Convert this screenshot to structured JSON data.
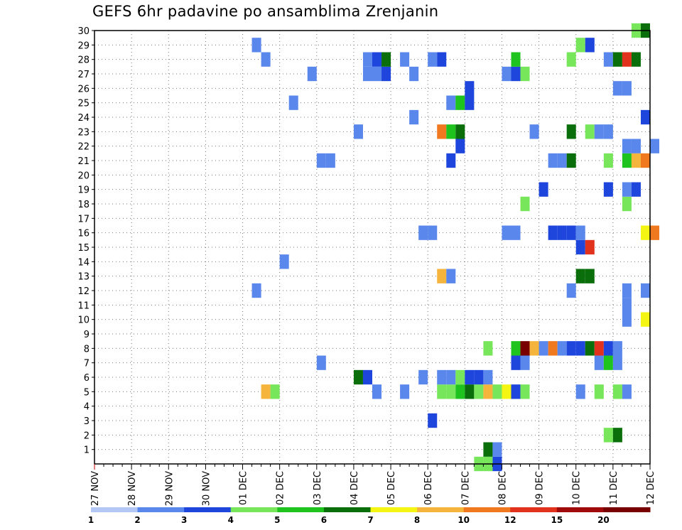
{
  "chart_data": {
    "type": "heatmap",
    "title": "GEFS 6hr padavine po ansamblima Zrenjanin",
    "x_tick_labels": [
      "27 NOV",
      "28 NOV",
      "29 NOV",
      "30 NOV",
      "01 DEC",
      "02 DEC",
      "03 DEC",
      "04 DEC",
      "05 DEC",
      "06 DEC",
      "07 DEC",
      "08 DEC",
      "09 DEC",
      "10 DEC",
      "11 DEC",
      "12 DEC"
    ],
    "y_tick_labels": [
      "1",
      "2",
      "3",
      "4",
      "5",
      "6",
      "7",
      "8",
      "9",
      "10",
      "11",
      "12",
      "13",
      "14",
      "15",
      "16",
      "17",
      "18",
      "19",
      "20",
      "21",
      "22",
      "23",
      "24",
      "25",
      "26",
      "27",
      "28",
      "29",
      "30"
    ],
    "x_unit": "6-hour step (4 steps per day)",
    "x_range": [
      0,
      60
    ],
    "y_range": [
      0,
      30
    ],
    "grid": true,
    "legend": {
      "placement": "bottom",
      "labels": [
        "1",
        "2",
        "3",
        "4",
        "5",
        "6",
        "7",
        "8",
        "10",
        "12",
        "15",
        "20"
      ],
      "colors": [
        "#b4c8f5",
        "#5a87eb",
        "#1e46dc",
        "#78e65a",
        "#1ec31e",
        "#0a6e0a",
        "#f5f514",
        "#f5b43c",
        "#f0781e",
        "#e1321e",
        "#a00a0a",
        "#780000"
      ]
    },
    "cells": [
      [
        41.5,
        0,
        3
      ],
      [
        42.5,
        0,
        3
      ],
      [
        43.5,
        0,
        2
      ],
      [
        42.5,
        1,
        5
      ],
      [
        43.5,
        1,
        1
      ],
      [
        55.5,
        2,
        3
      ],
      [
        56.5,
        2,
        5
      ],
      [
        36.5,
        3,
        2
      ],
      [
        18.5,
        5,
        7
      ],
      [
        19.5,
        5,
        3
      ],
      [
        30.5,
        5,
        1
      ],
      [
        33.5,
        5,
        1
      ],
      [
        37.5,
        5,
        3
      ],
      [
        38.5,
        5,
        3
      ],
      [
        39.5,
        5,
        4
      ],
      [
        40.5,
        5,
        5
      ],
      [
        41.5,
        5,
        3
      ],
      [
        42.5,
        5,
        7
      ],
      [
        43.5,
        5,
        3
      ],
      [
        44.5,
        5,
        6
      ],
      [
        45.5,
        5,
        2
      ],
      [
        46.5,
        5,
        3
      ],
      [
        52.5,
        5,
        1
      ],
      [
        54.5,
        5,
        3
      ],
      [
        56.5,
        5,
        3
      ],
      [
        57.5,
        5,
        1
      ],
      [
        28.5,
        6,
        5
      ],
      [
        29.5,
        6,
        2
      ],
      [
        35.5,
        6,
        1
      ],
      [
        37.5,
        6,
        1
      ],
      [
        38.5,
        6,
        1
      ],
      [
        39.5,
        6,
        3
      ],
      [
        40.5,
        6,
        2
      ],
      [
        41.5,
        6,
        2
      ],
      [
        42.5,
        6,
        1
      ],
      [
        24.5,
        7,
        1
      ],
      [
        45.5,
        7,
        2
      ],
      [
        46.5,
        7,
        1
      ],
      [
        54.5,
        7,
        1
      ],
      [
        55.5,
        7,
        4
      ],
      [
        56.5,
        7,
        1
      ],
      [
        42.5,
        8,
        3
      ],
      [
        45.5,
        8,
        4
      ],
      [
        46.5,
        8,
        11
      ],
      [
        47.5,
        8,
        7
      ],
      [
        48.5,
        8,
        1
      ],
      [
        49.5,
        8,
        8
      ],
      [
        50.5,
        8,
        1
      ],
      [
        51.5,
        8,
        2
      ],
      [
        52.5,
        8,
        2
      ],
      [
        53.5,
        8,
        5
      ],
      [
        54.5,
        8,
        9
      ],
      [
        55.5,
        8,
        2
      ],
      [
        56.5,
        8,
        1
      ],
      [
        57.5,
        10,
        1
      ],
      [
        59.5,
        10,
        6
      ],
      [
        57.5,
        11,
        1
      ],
      [
        57.5,
        12,
        1
      ],
      [
        17.5,
        12,
        1
      ],
      [
        51.5,
        12,
        1
      ],
      [
        59.5,
        12,
        1
      ],
      [
        37.5,
        13,
        7
      ],
      [
        38.5,
        13,
        1
      ],
      [
        52.5,
        13,
        5
      ],
      [
        53.5,
        13,
        5
      ],
      [
        20.5,
        14,
        1
      ],
      [
        52.5,
        15,
        2
      ],
      [
        53.5,
        15,
        9
      ],
      [
        35.5,
        16,
        1
      ],
      [
        36.5,
        16,
        1
      ],
      [
        44.5,
        16,
        1
      ],
      [
        45.5,
        16,
        1
      ],
      [
        49.5,
        16,
        2
      ],
      [
        50.5,
        16,
        2
      ],
      [
        51.5,
        16,
        2
      ],
      [
        52.5,
        16,
        1
      ],
      [
        59.5,
        16,
        6
      ],
      [
        60.5,
        16,
        8
      ],
      [
        46.5,
        18,
        3
      ],
      [
        57.5,
        18,
        3
      ],
      [
        48.5,
        19,
        2
      ],
      [
        55.5,
        19,
        2
      ],
      [
        57.5,
        19,
        1
      ],
      [
        58.5,
        19,
        2
      ],
      [
        24.5,
        21,
        1
      ],
      [
        25.5,
        21,
        1
      ],
      [
        38.5,
        21,
        2
      ],
      [
        49.5,
        21,
        1
      ],
      [
        50.5,
        21,
        1
      ],
      [
        51.5,
        21,
        5
      ],
      [
        55.5,
        21,
        3
      ],
      [
        57.5,
        21,
        4
      ],
      [
        58.5,
        21,
        7
      ],
      [
        59.5,
        21,
        8
      ],
      [
        39.5,
        22,
        2
      ],
      [
        57.5,
        22,
        1
      ],
      [
        58.5,
        22,
        1
      ],
      [
        60.5,
        22,
        1
      ],
      [
        28.5,
        23,
        1
      ],
      [
        37.5,
        23,
        8
      ],
      [
        38.5,
        23,
        4
      ],
      [
        39.5,
        23,
        5
      ],
      [
        47.5,
        23,
        1
      ],
      [
        51.5,
        23,
        5
      ],
      [
        53.5,
        23,
        3
      ],
      [
        54.5,
        23,
        1
      ],
      [
        55.5,
        23,
        1
      ],
      [
        34.5,
        24,
        1
      ],
      [
        59.5,
        24,
        2
      ],
      [
        21.5,
        25,
        1
      ],
      [
        38.5,
        25,
        1
      ],
      [
        39.5,
        25,
        4
      ],
      [
        40.5,
        25,
        2
      ],
      [
        40.5,
        26,
        2
      ],
      [
        56.5,
        26,
        1
      ],
      [
        57.5,
        26,
        1
      ],
      [
        23.5,
        27,
        1
      ],
      [
        29.5,
        27,
        1
      ],
      [
        30.5,
        27,
        1
      ],
      [
        31.5,
        27,
        2
      ],
      [
        34.5,
        27,
        1
      ],
      [
        44.5,
        27,
        1
      ],
      [
        45.5,
        27,
        2
      ],
      [
        46.5,
        27,
        3
      ],
      [
        18.5,
        28,
        1
      ],
      [
        29.5,
        28,
        1
      ],
      [
        30.5,
        28,
        2
      ],
      [
        31.5,
        28,
        5
      ],
      [
        33.5,
        28,
        1
      ],
      [
        36.5,
        28,
        1
      ],
      [
        37.5,
        28,
        2
      ],
      [
        45.5,
        28,
        4
      ],
      [
        51.5,
        28,
        3
      ],
      [
        55.5,
        28,
        1
      ],
      [
        56.5,
        28,
        5
      ],
      [
        57.5,
        28,
        9
      ],
      [
        58.5,
        28,
        5
      ],
      [
        17.5,
        29,
        1
      ],
      [
        52.5,
        29,
        3
      ],
      [
        53.5,
        29,
        2
      ],
      [
        58.5,
        30,
        3
      ],
      [
        59.5,
        30,
        5
      ]
    ]
  }
}
